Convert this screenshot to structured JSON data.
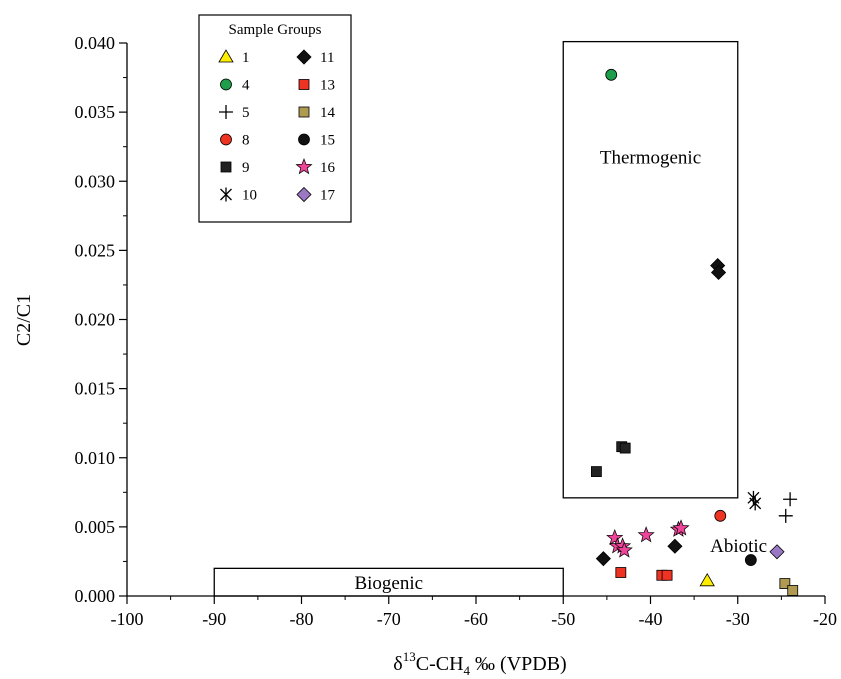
{
  "chart_data": {
    "type": "scatter",
    "x_axis": {
      "title_main": "δ",
      "title_sup": "13",
      "title_mid": "C-CH",
      "title_sub": "4",
      "title_end": " ‰ (VPDB)",
      "min": -100,
      "max": -20,
      "ticks": [
        -100,
        -90,
        -80,
        -70,
        -60,
        -50,
        -40,
        -30,
        -20
      ],
      "tick_labels": [
        "-100",
        "-90",
        "-80",
        "-70",
        "-60",
        "-50",
        "-40",
        "-30",
        "-20"
      ]
    },
    "y_axis": {
      "title": "C2/C1",
      "min": 0.0,
      "max": 0.04,
      "ticks": [
        0.0,
        0.005,
        0.01,
        0.015,
        0.02,
        0.025,
        0.03,
        0.035,
        0.04
      ],
      "tick_labels": [
        "0.000",
        "0.005",
        "0.010",
        "0.015",
        "0.020",
        "0.025",
        "0.030",
        "0.035",
        "0.040"
      ]
    },
    "regions": [
      {
        "label": "Thermogenic",
        "x0": -50,
        "x1": -30,
        "y0": 0.0071,
        "y1": 0.0401,
        "label_x": -40,
        "label_y": 0.0318
      },
      {
        "label": "Biogenic",
        "x0": -90,
        "x1": -50,
        "y0": 0.0,
        "y1": 0.002,
        "label_x": -70,
        "label_y": 0.001
      },
      {
        "label": "Abiotic",
        "label_x": -29.9,
        "label_y": 0.0037
      }
    ],
    "legend": {
      "title": "Sample Groups",
      "position": "top-left"
    },
    "series": [
      {
        "name": "1",
        "marker": "triangle",
        "color": "#ffee00",
        "points": [
          [
            -33.5,
            0.0011
          ]
        ]
      },
      {
        "name": "4",
        "marker": "circle",
        "color": "#1e9e4a",
        "points": [
          [
            -44.5,
            0.0377
          ]
        ]
      },
      {
        "name": "5",
        "marker": "plus",
        "color": "#000000",
        "points": [
          [
            -24.0,
            0.007
          ],
          [
            -24.5,
            0.0058
          ]
        ]
      },
      {
        "name": "8",
        "marker": "circle",
        "color": "#ee3322",
        "points": [
          [
            -32.0,
            0.0058
          ]
        ]
      },
      {
        "name": "9",
        "marker": "square",
        "color": "#222222",
        "points": [
          [
            -46.2,
            0.009
          ],
          [
            -43.3,
            0.0108
          ],
          [
            -42.9,
            0.0107
          ]
        ]
      },
      {
        "name": "10",
        "marker": "asterisk",
        "color": "#000000",
        "points": [
          [
            -28.2,
            0.0071
          ],
          [
            -28.0,
            0.0067
          ]
        ]
      },
      {
        "name": "11",
        "marker": "diamond",
        "color": "#111111",
        "points": [
          [
            -32.3,
            0.0239
          ],
          [
            -32.2,
            0.0234
          ],
          [
            -45.4,
            0.0027
          ],
          [
            -37.2,
            0.0036
          ]
        ]
      },
      {
        "name": "13",
        "marker": "square",
        "color": "#ee3322",
        "points": [
          [
            -43.4,
            0.0017
          ],
          [
            -38.7,
            0.0015
          ],
          [
            -38.1,
            0.0015
          ]
        ]
      },
      {
        "name": "14",
        "marker": "square",
        "color": "#b09a52",
        "points": [
          [
            -24.6,
            0.0009
          ],
          [
            -23.7,
            0.0004
          ]
        ]
      },
      {
        "name": "15",
        "marker": "circle",
        "color": "#111111",
        "points": [
          [
            -28.5,
            0.0026
          ]
        ]
      },
      {
        "name": "16",
        "marker": "star",
        "color": "#ee4499",
        "points": [
          [
            -44.1,
            0.0042
          ],
          [
            -43.8,
            0.0036
          ],
          [
            -43.2,
            0.0036
          ],
          [
            -43.0,
            0.0033
          ],
          [
            -40.5,
            0.0044
          ],
          [
            -36.8,
            0.0048
          ],
          [
            -36.5,
            0.0049
          ]
        ]
      },
      {
        "name": "17",
        "marker": "diamond",
        "color": "#9b78c4",
        "points": [
          [
            -25.5,
            0.0032
          ]
        ]
      }
    ]
  }
}
